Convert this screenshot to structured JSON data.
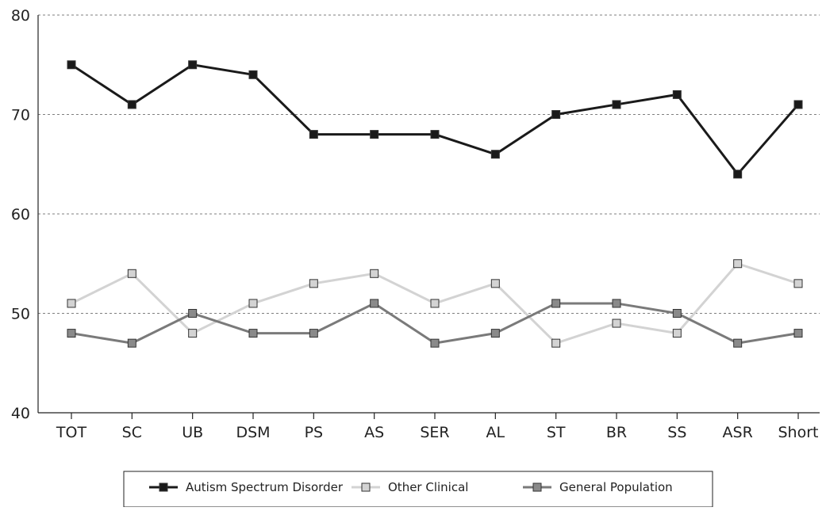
{
  "chart_data": {
    "type": "line",
    "title": "",
    "xlabel": "",
    "ylabel": "",
    "categories": [
      "TOT",
      "SC",
      "UB",
      "DSM",
      "PS",
      "AS",
      "SER",
      "AL",
      "ST",
      "BR",
      "SS",
      "ASR",
      "Short"
    ],
    "ylim": [
      40,
      80
    ],
    "yticks": [
      40,
      50,
      60,
      70,
      80
    ],
    "grid": "horizontal dashed",
    "legend_position": "bottom",
    "series": [
      {
        "name": "Autism Spectrum Disorder",
        "color": "#1a1a1a",
        "marker_fill": "#1a1a1a",
        "values": [
          75,
          71,
          75,
          74,
          68,
          68,
          68,
          66,
          70,
          71,
          72,
          64,
          71
        ]
      },
      {
        "name": "Other Clinical",
        "color": "#d3d3d3",
        "marker_fill": "#d3d3d3",
        "values": [
          51,
          54,
          48,
          51,
          53,
          54,
          51,
          53,
          47,
          49,
          48,
          55,
          53
        ]
      },
      {
        "name": "General Population",
        "color": "#7a7a7a",
        "marker_fill": "#8a8a8a",
        "values": [
          48,
          47,
          50,
          48,
          48,
          51,
          47,
          48,
          51,
          51,
          50,
          47,
          48
        ]
      }
    ]
  }
}
